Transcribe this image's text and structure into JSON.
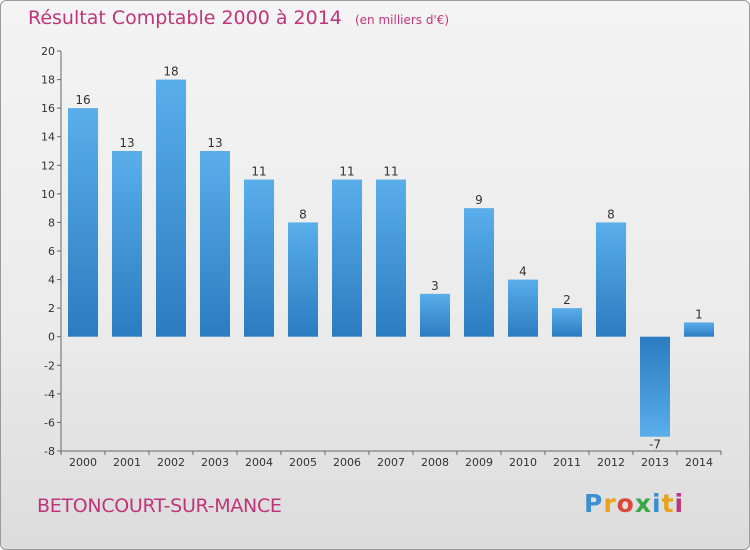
{
  "chart_data": {
    "type": "bar",
    "title": "Résultat Comptable 2000 à 2014",
    "unit": "(en milliers d'€)",
    "categories": [
      "2000",
      "2001",
      "2002",
      "2003",
      "2004",
      "2005",
      "2006",
      "2007",
      "2008",
      "2009",
      "2010",
      "2011",
      "2012",
      "2013",
      "2014"
    ],
    "values": [
      16,
      13,
      18,
      13,
      11,
      8,
      11,
      11,
      3,
      9,
      4,
      2,
      8,
      -7,
      1
    ],
    "ylim": [
      -8,
      20
    ],
    "yticks": [
      20,
      18,
      16,
      14,
      12,
      10,
      8,
      6,
      4,
      2,
      0,
      -2,
      -4,
      -6,
      -8
    ],
    "xlabel": "",
    "ylabel": "",
    "grid": false
  },
  "commune": "BETONCOURT-SUR-MANCE",
  "logo": {
    "letters": [
      "P",
      "r",
      "o",
      "x",
      "i",
      "t",
      "i"
    ],
    "colors": [
      "#3a8fd1",
      "#e8a21c",
      "#d94a3b",
      "#3aa845",
      "#3a8fd1",
      "#e8a21c",
      "#c0357a"
    ]
  },
  "colors": {
    "bar_top": "#5aaeea",
    "bar_bottom": "#2b7cc0",
    "title": "#c0357a"
  }
}
